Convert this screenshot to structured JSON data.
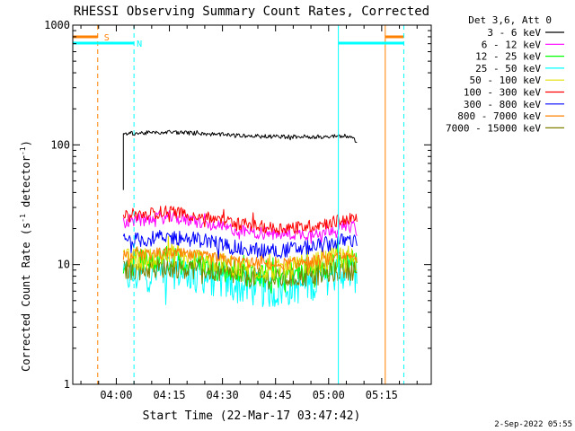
{
  "chart_data": {
    "type": "line",
    "title": "RHESSI Observing Summary Count Rates, Corrected",
    "xlabel": "Start Time (22-Mar-17 03:47:42)",
    "ylabel_main": "Corrected Count Rate (s",
    "ylabel_sup1": "-1",
    "ylabel_mid": " detector",
    "ylabel_sup2": "-1",
    "ylabel_end": ")",
    "ylabel": "Corrected Count Rate (s-1 detector-1)",
    "yscale": "log",
    "ylim": [
      1,
      1000
    ],
    "xlim": [
      "03:47:42",
      "05:29:00"
    ],
    "x_ticks": [
      "04:00",
      "04:15",
      "04:30",
      "04:45",
      "05:00",
      "05:15"
    ],
    "y_ticks": [
      "1",
      "10",
      "100",
      "1000"
    ],
    "legend_title": "Det 3,6, Att 0",
    "legend_position": "right",
    "date_stamp": "2-Sep-2022 05:55",
    "markers": [
      {
        "label": "S",
        "kind": "SAA",
        "color": "#ff8000",
        "start": "03:47:42",
        "end": "03:54:45"
      },
      {
        "label": "S",
        "kind": "SAA",
        "color": "#ff8000",
        "start": "05:16:00",
        "end": "05:21:15"
      },
      {
        "label": "N",
        "kind": "Night",
        "color": "#00ffff",
        "start": "03:47:42",
        "end": "04:05:00"
      },
      {
        "label": "N",
        "kind": "Night",
        "color": "#00ffff",
        "start": "05:02:45",
        "end": "05:21:15"
      }
    ],
    "series": [
      {
        "name": "3 - 6 keV",
        "color": "#000000",
        "x": [
          "04:02",
          "04:06",
          "04:15",
          "04:25",
          "04:35",
          "04:45",
          "04:55",
          "05:05",
          "05:08"
        ],
        "values": [
          125,
          125,
          128,
          124,
          119,
          117,
          117,
          118,
          108
        ]
      },
      {
        "name": "6 - 12 keV",
        "color": "#ff00ff",
        "x": [
          "04:02",
          "04:06",
          "04:15",
          "04:25",
          "04:35",
          "04:45",
          "04:55",
          "05:05",
          "05:08"
        ],
        "values": [
          22,
          23,
          25,
          22,
          19,
          18,
          18,
          21,
          20
        ]
      },
      {
        "name": "12 - 25 keV",
        "color": "#00ff00",
        "x": [
          "04:02",
          "04:06",
          "04:15",
          "04:25",
          "04:35",
          "04:45",
          "04:55",
          "05:05",
          "05:08"
        ],
        "values": [
          10,
          10.5,
          11,
          10,
          8.5,
          8,
          9,
          11,
          10
        ]
      },
      {
        "name": "25 - 50 keV",
        "color": "#00ffff",
        "x": [
          "04:02",
          "04:06",
          "04:15",
          "04:25",
          "04:35",
          "04:45",
          "04:55",
          "05:05",
          "05:08"
        ],
        "values": [
          8,
          8,
          9,
          8,
          6.5,
          6,
          7,
          9,
          8
        ]
      },
      {
        "name": "50 - 100 keV",
        "color": "#e0e000",
        "x": [
          "04:02",
          "04:06",
          "04:15",
          "04:25",
          "04:35",
          "04:45",
          "04:55",
          "05:05",
          "05:08"
        ],
        "values": [
          11,
          11,
          12,
          11,
          9.5,
          9,
          10,
          12,
          11
        ]
      },
      {
        "name": "100 - 300 keV",
        "color": "#ff0000",
        "x": [
          "04:02",
          "04:06",
          "04:15",
          "04:25",
          "04:35",
          "04:45",
          "04:55",
          "05:05",
          "05:08"
        ],
        "values": [
          25,
          26,
          28,
          25,
          22,
          20,
          21,
          24,
          24
        ]
      },
      {
        "name": "300 - 800 keV",
        "color": "#0000ff",
        "x": [
          "04:02",
          "04:06",
          "04:15",
          "04:25",
          "04:35",
          "04:45",
          "04:55",
          "05:05",
          "05:08"
        ],
        "values": [
          16,
          16,
          17,
          16,
          13.5,
          13,
          14,
          16,
          16
        ]
      },
      {
        "name": "800 - 7000 keV",
        "color": "#ff8000",
        "x": [
          "04:02",
          "04:06",
          "04:15",
          "04:25",
          "04:35",
          "04:45",
          "04:55",
          "05:05",
          "05:08"
        ],
        "values": [
          12,
          12,
          12.5,
          11.5,
          10.5,
          10,
          10.5,
          11.5,
          11
        ]
      },
      {
        "name": "7000 - 15000 keV",
        "color": "#808000",
        "x": [
          "04:02",
          "04:06",
          "04:15",
          "04:25",
          "04:35",
          "04:45",
          "04:55",
          "05:05",
          "05:08"
        ],
        "values": [
          9,
          9,
          9.5,
          9,
          8,
          7.5,
          8,
          9,
          9
        ]
      }
    ]
  }
}
